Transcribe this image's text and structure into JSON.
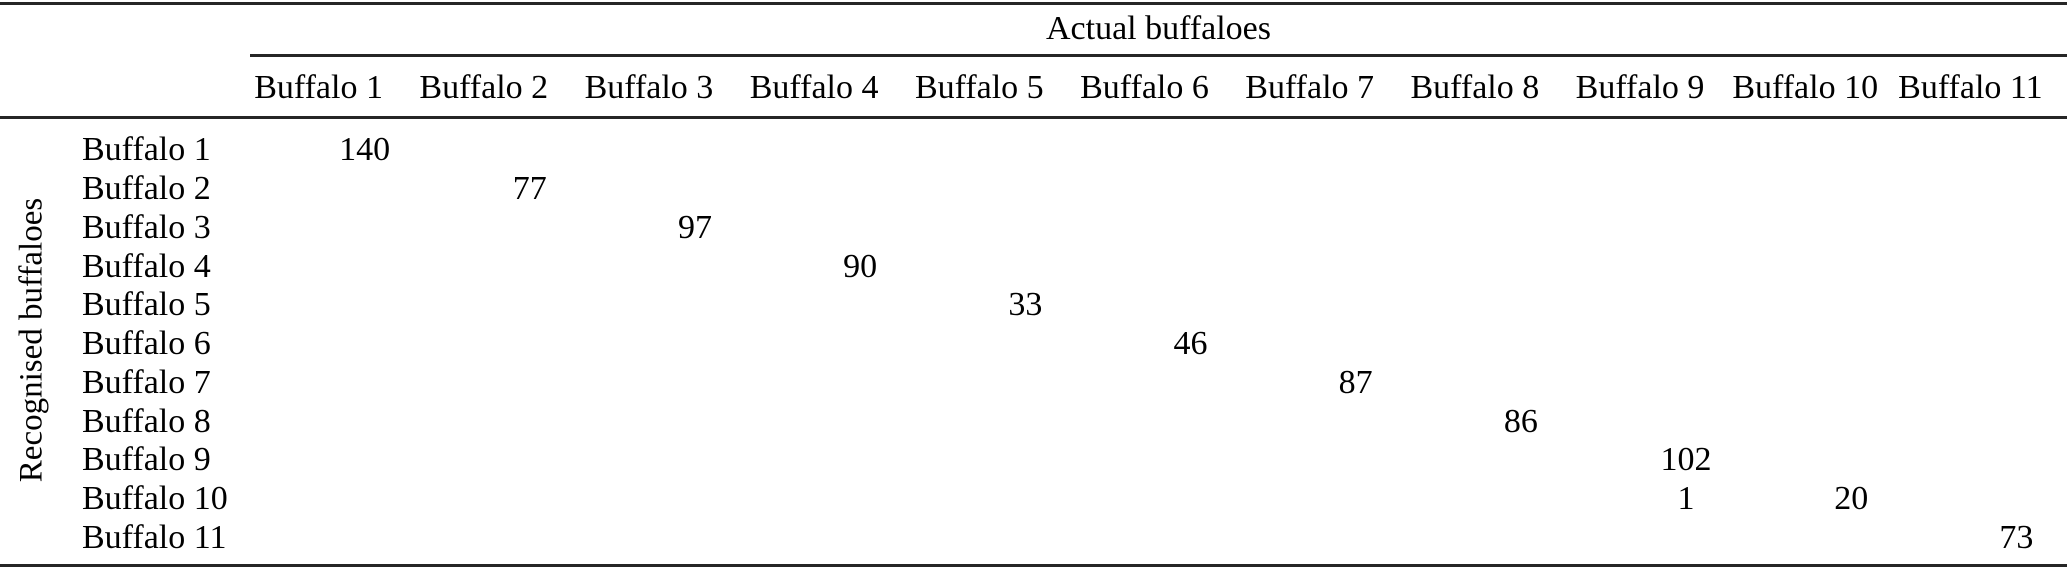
{
  "figure": {
    "col_group_label": "Actual buffaloes",
    "row_group_label": "Recognised buffaloes"
  },
  "table": {
    "columns": [
      "Buffalo 1",
      "Buffalo 2",
      "Buffalo 3",
      "Buffalo 4",
      "Buffalo 5",
      "Buffalo 6",
      "Buffalo 7",
      "Buffalo 8",
      "Buffalo 9",
      "Buffalo 10",
      "Buffalo 11"
    ],
    "rows": [
      "Buffalo 1",
      "Buffalo 2",
      "Buffalo 3",
      "Buffalo 4",
      "Buffalo 5",
      "Buffalo 6",
      "Buffalo 7",
      "Buffalo 8",
      "Buffalo 9",
      "Buffalo 10",
      "Buffalo 11"
    ],
    "matrix": [
      [
        140,
        null,
        null,
        null,
        null,
        null,
        null,
        null,
        null,
        null,
        null
      ],
      [
        null,
        77,
        null,
        null,
        null,
        null,
        null,
        null,
        null,
        null,
        null
      ],
      [
        null,
        null,
        97,
        null,
        null,
        null,
        null,
        null,
        null,
        null,
        null
      ],
      [
        null,
        null,
        null,
        90,
        null,
        null,
        null,
        null,
        null,
        null,
        null
      ],
      [
        null,
        null,
        null,
        null,
        33,
        null,
        null,
        null,
        null,
        null,
        null
      ],
      [
        null,
        null,
        null,
        null,
        null,
        46,
        null,
        null,
        null,
        null,
        null
      ],
      [
        null,
        null,
        null,
        null,
        null,
        null,
        87,
        null,
        null,
        null,
        null
      ],
      [
        null,
        null,
        null,
        null,
        null,
        null,
        null,
        86,
        null,
        null,
        null
      ],
      [
        null,
        null,
        null,
        null,
        null,
        null,
        null,
        null,
        102,
        null,
        null
      ],
      [
        null,
        null,
        null,
        null,
        null,
        null,
        null,
        null,
        1,
        20,
        null
      ],
      [
        null,
        null,
        null,
        null,
        null,
        null,
        null,
        null,
        null,
        null,
        73
      ]
    ]
  },
  "colors": {
    "text": "#000000",
    "rule": "#262626",
    "background": "#ffffff"
  }
}
